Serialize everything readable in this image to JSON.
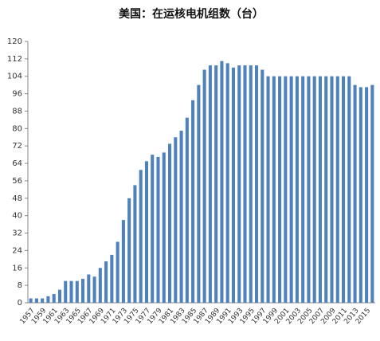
{
  "chart_data": {
    "type": "bar",
    "title": "美国：在运核电机组数（台）",
    "categories": [
      "1957",
      null,
      "1959",
      null,
      "1961",
      null,
      "1963",
      null,
      "1965",
      null,
      "1967",
      null,
      "1969",
      null,
      "1971",
      null,
      "1973",
      null,
      "1975",
      null,
      "1977",
      null,
      "1979",
      null,
      "1981",
      null,
      "1983",
      null,
      "1985",
      null,
      "1987",
      null,
      "1989",
      null,
      "1991",
      null,
      "1993",
      null,
      "1995",
      null,
      "1997",
      null,
      "1999",
      null,
      "2001",
      null,
      "2003",
      null,
      "2005",
      null,
      "2007",
      null,
      "2009",
      null,
      "2011",
      null,
      "2013",
      null,
      "2015",
      null
    ],
    "values": [
      2,
      2,
      2,
      3,
      4,
      6,
      10,
      10,
      10,
      11,
      13,
      12,
      16,
      19,
      22,
      28,
      38,
      48,
      54,
      61,
      65,
      68,
      67,
      69,
      73,
      76,
      79,
      85,
      93,
      100,
      107,
      109,
      109,
      111,
      110,
      108,
      109,
      109,
      109,
      109,
      107,
      104,
      104,
      104,
      104,
      104,
      104,
      104,
      104,
      104,
      104,
      104,
      104,
      104,
      104,
      104,
      100,
      99,
      99,
      100
    ],
    "color": "#4f81bd",
    "ylim": [
      0,
      120
    ],
    "yticks": [
      0,
      8,
      16,
      24,
      32,
      40,
      48,
      56,
      64,
      72,
      80,
      88,
      96,
      104,
      112,
      120
    ],
    "grid": false
  }
}
